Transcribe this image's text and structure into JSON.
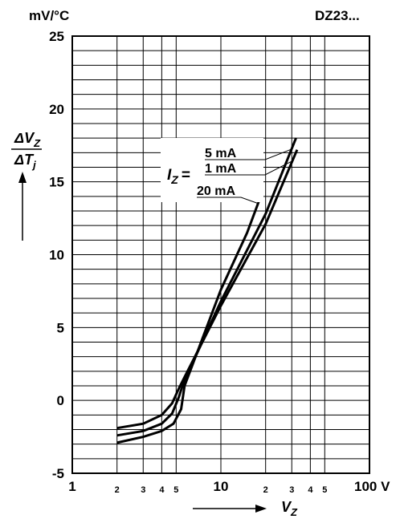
{
  "chart_data": {
    "type": "line",
    "title": "DZ23...",
    "y_unit": "mV/°C",
    "y_label": {
      "numerator": "ΔV",
      "numerator_sub": "Z",
      "denominator": "ΔT",
      "denominator_sub": "j"
    },
    "x_label": {
      "text": "V",
      "sub": "Z"
    },
    "legend_title": {
      "text": "I",
      "sub": "Z",
      "suffix": "="
    },
    "x_log": true,
    "grid": true,
    "color": "#000000",
    "xlim": [
      1,
      100
    ],
    "ylim": [
      -5,
      25
    ],
    "xticks": [
      1,
      2,
      3,
      4,
      5,
      10,
      {
        "value": 20,
        "label": "2"
      },
      {
        "value": 30,
        "label": "3"
      },
      {
        "value": 40,
        "label": "4"
      },
      {
        "value": 50,
        "label": "5"
      },
      {
        "value": 100,
        "label": "100 V"
      }
    ],
    "yticks": [
      -5,
      0,
      5,
      10,
      15,
      20,
      25
    ],
    "y_minor_ticks": [
      -4,
      -3,
      -2,
      -1,
      1,
      2,
      3,
      4,
      6,
      7,
      8,
      9,
      11,
      12,
      13,
      14,
      16,
      17,
      18,
      19,
      21,
      22,
      23,
      24
    ],
    "series": [
      {
        "name": "5 mA",
        "x": [
          2,
          3,
          4,
          4.7,
          5.2,
          5.6,
          10,
          20,
          32
        ],
        "values": [
          -2.4,
          -2.1,
          -1.6,
          -0.9,
          0.2,
          1.2,
          6.8,
          12.8,
          18
        ]
      },
      {
        "name": "1 mA",
        "x": [
          2,
          3,
          4,
          4.7,
          5.2,
          5.7,
          10,
          20,
          32.6
        ],
        "values": [
          -1.9,
          -1.6,
          -1.0,
          -0.2,
          0.8,
          1.6,
          6.5,
          12.1,
          17.2
        ]
      },
      {
        "name": "20 mA",
        "x": [
          2,
          3,
          4,
          4.8,
          5.4,
          5.7,
          10,
          15,
          19
        ],
        "values": [
          -2.9,
          -2.5,
          -2.1,
          -1.6,
          -0.6,
          1.0,
          7.6,
          11.5,
          14.3
        ]
      }
    ]
  }
}
